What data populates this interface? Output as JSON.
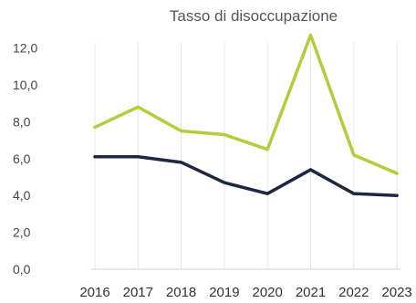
{
  "chart_data": {
    "type": "line",
    "title": "Tasso di disoccupazione",
    "xlabel": "",
    "ylabel": "",
    "categories": [
      "2016",
      "2017",
      "2018",
      "2019",
      "2020",
      "2021",
      "2022",
      "2023"
    ],
    "yticks": [
      "0,0",
      "2,0",
      "4,0",
      "6,0",
      "8,0",
      "10,0",
      "12,0"
    ],
    "ylim": [
      0,
      12.5
    ],
    "grid": "vertical",
    "series": [
      {
        "values": [
          7.7,
          8.8,
          7.5,
          7.3,
          6.5,
          12.7,
          6.2,
          5.2
        ],
        "color": "#b5cc3c"
      },
      {
        "values": [
          6.1,
          6.1,
          5.8,
          4.7,
          4.1,
          5.4,
          4.1,
          4.0
        ],
        "color": "#1f2640"
      }
    ]
  }
}
